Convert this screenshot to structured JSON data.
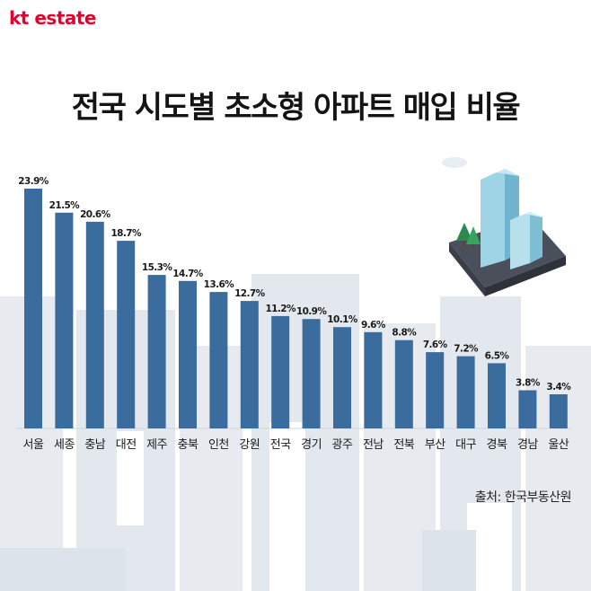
{
  "brand": {
    "kt": "kt",
    "estate": "estate",
    "color": "#e6002d"
  },
  "title": "전국 시도별 초소형 아파트 매입 비율",
  "source": "출처: 한국부동산원",
  "colors": {
    "bar": "#3a6c9e",
    "background_buildings": "#e5eaef",
    "label": "#1a1a1a"
  },
  "illustration": {
    "name": "city-buildings-illustration"
  },
  "chart_data": {
    "type": "bar",
    "title": "전국 시도별 초소형 아파트 매입 비율",
    "xlabel": "",
    "ylabel": "",
    "unit": "%",
    "categories": [
      "서울",
      "세종",
      "충남",
      "대전",
      "제주",
      "충북",
      "인천",
      "강원",
      "전국",
      "경기",
      "광주",
      "전남",
      "전북",
      "부산",
      "대구",
      "경북",
      "경남",
      "울산"
    ],
    "values": [
      23.9,
      21.5,
      20.6,
      18.7,
      15.3,
      14.7,
      13.6,
      12.7,
      11.2,
      10.9,
      10.1,
      9.6,
      8.8,
      7.6,
      7.2,
      6.5,
      3.8,
      3.4
    ],
    "data_labels": [
      "23.9%",
      "21.5%",
      "20.6%",
      "18.7%",
      "15.3%",
      "14.7%",
      "13.6%",
      "12.7%",
      "11.2%",
      "10.9%",
      "10.1%",
      "9.6%",
      "8.8%",
      "7.6%",
      "7.2%",
      "6.5%",
      "3.8%",
      "3.4%"
    ],
    "ylim": [
      0,
      25
    ],
    "grid": false,
    "legend": "none"
  }
}
